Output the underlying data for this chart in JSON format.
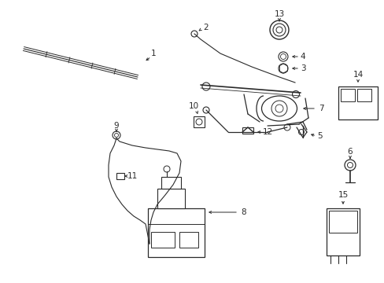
{
  "bg_color": "#ffffff",
  "fig_width": 4.89,
  "fig_height": 3.6,
  "dpi": 100,
  "line_color": "#2a2a2a",
  "label_fontsize": 7.5
}
